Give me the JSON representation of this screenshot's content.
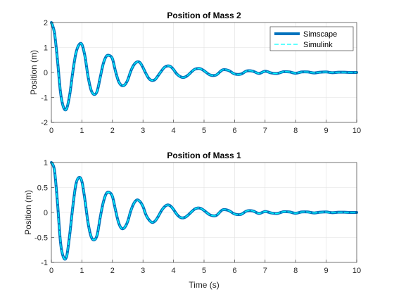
{
  "chart_data": [
    {
      "type": "line",
      "title": "Position of Mass 2",
      "xlabel": "",
      "ylabel": "Position (m)",
      "xlim": [
        0,
        10
      ],
      "ylim": [
        -2,
        2
      ],
      "xticks": [
        0,
        1,
        2,
        3,
        4,
        5,
        6,
        7,
        8,
        9,
        10
      ],
      "yticks": [
        -2,
        -1,
        0,
        1,
        2
      ],
      "grid": true,
      "legend": "top-right",
      "series": [
        {
          "name": "Simscape",
          "style": "solid-thick",
          "color": "#0072BD",
          "x": [
            0,
            0.1,
            0.2,
            0.3,
            0.4,
            0.5,
            0.6,
            0.7,
            0.8,
            0.9,
            1.0,
            1.1,
            1.2,
            1.3,
            1.4,
            1.5,
            1.6,
            1.7,
            1.8,
            1.9,
            2.0,
            2.1,
            2.2,
            2.3,
            2.4,
            2.5,
            2.6,
            2.7,
            2.8,
            2.9,
            3.0,
            3.1,
            3.2,
            3.3,
            3.4,
            3.5,
            3.6,
            3.7,
            3.8,
            3.9,
            4.0,
            4.1,
            4.2,
            4.3,
            4.4,
            4.5,
            4.6,
            4.7,
            4.8,
            4.9,
            5.0,
            5.2,
            5.4,
            5.6,
            5.8,
            6.0,
            6.2,
            6.4,
            6.6,
            6.8,
            7.0,
            7.2,
            7.4,
            7.6,
            7.8,
            8.0,
            8.2,
            8.4,
            8.6,
            8.8,
            9.0,
            9.2,
            9.4,
            9.6,
            9.8,
            10.0
          ],
          "y": [
            2.0,
            1.6,
            0.5,
            -0.8,
            -1.4,
            -1.45,
            -0.9,
            0.0,
            0.75,
            1.1,
            1.12,
            0.65,
            -0.15,
            -0.7,
            -0.88,
            -0.75,
            -0.2,
            0.35,
            0.65,
            0.68,
            0.55,
            0.05,
            -0.35,
            -0.52,
            -0.5,
            -0.3,
            0.05,
            0.3,
            0.42,
            0.4,
            0.2,
            -0.05,
            -0.25,
            -0.32,
            -0.28,
            -0.12,
            0.05,
            0.2,
            0.26,
            0.24,
            0.12,
            -0.05,
            -0.15,
            -0.2,
            -0.17,
            -0.08,
            0.04,
            0.13,
            0.16,
            0.14,
            0.07,
            -0.1,
            -0.1,
            0.1,
            0.08,
            -0.06,
            -0.07,
            0.06,
            0.05,
            -0.04,
            0.05,
            -0.02,
            -0.04,
            0.03,
            0.02,
            -0.03,
            0.02,
            0.02,
            -0.02,
            0.01,
            0.02,
            -0.01,
            0.01,
            0.01,
            0.0,
            0.0
          ]
        },
        {
          "name": "Simulink",
          "style": "dashed",
          "color": "#00FFFF",
          "x": [
            0,
            0.1,
            0.2,
            0.3,
            0.4,
            0.5,
            0.6,
            0.7,
            0.8,
            0.9,
            1.0,
            1.1,
            1.2,
            1.3,
            1.4,
            1.5,
            1.6,
            1.7,
            1.8,
            1.9,
            2.0,
            2.1,
            2.2,
            2.3,
            2.4,
            2.5,
            2.6,
            2.7,
            2.8,
            2.9,
            3.0,
            3.1,
            3.2,
            3.3,
            3.4,
            3.5,
            3.6,
            3.7,
            3.8,
            3.9,
            4.0,
            4.1,
            4.2,
            4.3,
            4.4,
            4.5,
            4.6,
            4.7,
            4.8,
            4.9,
            5.0,
            5.2,
            5.4,
            5.6,
            5.8,
            6.0,
            6.2,
            6.4,
            6.6,
            6.8,
            7.0,
            7.2,
            7.4,
            7.6,
            7.8,
            8.0,
            8.2,
            8.4,
            8.6,
            8.8,
            9.0,
            9.2,
            9.4,
            9.6,
            9.8,
            10.0
          ],
          "y": [
            2.0,
            1.6,
            0.5,
            -0.8,
            -1.4,
            -1.45,
            -0.9,
            0.0,
            0.75,
            1.1,
            1.12,
            0.65,
            -0.15,
            -0.7,
            -0.88,
            -0.75,
            -0.2,
            0.35,
            0.65,
            0.68,
            0.55,
            0.05,
            -0.35,
            -0.52,
            -0.5,
            -0.3,
            0.05,
            0.3,
            0.42,
            0.4,
            0.2,
            -0.05,
            -0.25,
            -0.32,
            -0.28,
            -0.12,
            0.05,
            0.2,
            0.26,
            0.24,
            0.12,
            -0.05,
            -0.15,
            -0.2,
            -0.17,
            -0.08,
            0.04,
            0.13,
            0.16,
            0.14,
            0.07,
            -0.1,
            -0.1,
            0.1,
            0.08,
            -0.06,
            -0.07,
            0.06,
            0.05,
            -0.04,
            0.05,
            -0.02,
            -0.04,
            0.03,
            0.02,
            -0.03,
            0.02,
            0.02,
            -0.02,
            0.01,
            0.02,
            -0.01,
            0.01,
            0.01,
            0.0,
            0.0
          ]
        }
      ]
    },
    {
      "type": "line",
      "title": "Position of Mass 1",
      "xlabel": "Time (s)",
      "ylabel": "Position (m)",
      "xlim": [
        0,
        10
      ],
      "ylim": [
        -1,
        1
      ],
      "xticks": [
        0,
        1,
        2,
        3,
        4,
        5,
        6,
        7,
        8,
        9,
        10
      ],
      "yticks": [
        -1,
        -0.5,
        0,
        0.5,
        1
      ],
      "grid": true,
      "legend": "none",
      "series": [
        {
          "name": "Simscape",
          "style": "solid-thick",
          "color": "#0072BD",
          "x": [
            0,
            0.1,
            0.2,
            0.3,
            0.4,
            0.5,
            0.6,
            0.7,
            0.8,
            0.9,
            1.0,
            1.1,
            1.2,
            1.3,
            1.4,
            1.5,
            1.6,
            1.7,
            1.8,
            1.9,
            2.0,
            2.1,
            2.2,
            2.3,
            2.4,
            2.5,
            2.6,
            2.7,
            2.8,
            2.9,
            3.0,
            3.1,
            3.2,
            3.3,
            3.4,
            3.5,
            3.6,
            3.7,
            3.8,
            3.9,
            4.0,
            4.1,
            4.2,
            4.3,
            4.4,
            4.5,
            4.6,
            4.7,
            4.8,
            4.9,
            5.0,
            5.2,
            5.4,
            5.6,
            5.8,
            6.0,
            6.2,
            6.4,
            6.6,
            6.8,
            7.0,
            7.2,
            7.4,
            7.6,
            7.8,
            8.0,
            8.2,
            8.4,
            8.6,
            8.8,
            9.0,
            9.2,
            9.4,
            9.6,
            9.8,
            10.0
          ],
          "y": [
            1.0,
            0.85,
            0.2,
            -0.6,
            -0.9,
            -0.88,
            -0.45,
            0.1,
            0.55,
            0.7,
            0.62,
            0.25,
            -0.2,
            -0.48,
            -0.55,
            -0.45,
            -0.1,
            0.2,
            0.38,
            0.4,
            0.32,
            0.05,
            -0.2,
            -0.32,
            -0.3,
            -0.18,
            0.03,
            0.18,
            0.25,
            0.22,
            0.12,
            -0.05,
            -0.15,
            -0.2,
            -0.17,
            -0.08,
            0.03,
            0.11,
            0.15,
            0.13,
            0.06,
            -0.03,
            -0.09,
            -0.11,
            -0.09,
            -0.04,
            0.02,
            0.07,
            0.09,
            0.08,
            0.04,
            -0.05,
            -0.06,
            0.05,
            0.04,
            -0.03,
            -0.04,
            0.03,
            0.03,
            -0.02,
            0.02,
            -0.01,
            -0.02,
            0.015,
            0.01,
            -0.015,
            0.01,
            0.01,
            -0.01,
            0.005,
            0.01,
            -0.005,
            0.005,
            0.005,
            0.0,
            0.0
          ]
        },
        {
          "name": "Simulink",
          "style": "dashed",
          "color": "#00FFFF",
          "x": [
            0,
            0.1,
            0.2,
            0.3,
            0.4,
            0.5,
            0.6,
            0.7,
            0.8,
            0.9,
            1.0,
            1.1,
            1.2,
            1.3,
            1.4,
            1.5,
            1.6,
            1.7,
            1.8,
            1.9,
            2.0,
            2.1,
            2.2,
            2.3,
            2.4,
            2.5,
            2.6,
            2.7,
            2.8,
            2.9,
            3.0,
            3.1,
            3.2,
            3.3,
            3.4,
            3.5,
            3.6,
            3.7,
            3.8,
            3.9,
            4.0,
            4.1,
            4.2,
            4.3,
            4.4,
            4.5,
            4.6,
            4.7,
            4.8,
            4.9,
            5.0,
            5.2,
            5.4,
            5.6,
            5.8,
            6.0,
            6.2,
            6.4,
            6.6,
            6.8,
            7.0,
            7.2,
            7.4,
            7.6,
            7.8,
            8.0,
            8.2,
            8.4,
            8.6,
            8.8,
            9.0,
            9.2,
            9.4,
            9.6,
            9.8,
            10.0
          ],
          "y": [
            1.0,
            0.85,
            0.2,
            -0.6,
            -0.9,
            -0.88,
            -0.45,
            0.1,
            0.55,
            0.7,
            0.62,
            0.25,
            -0.2,
            -0.48,
            -0.55,
            -0.45,
            -0.1,
            0.2,
            0.38,
            0.4,
            0.32,
            0.05,
            -0.2,
            -0.32,
            -0.3,
            -0.18,
            0.03,
            0.18,
            0.25,
            0.22,
            0.12,
            -0.05,
            -0.15,
            -0.2,
            -0.17,
            -0.08,
            0.03,
            0.11,
            0.15,
            0.13,
            0.06,
            -0.03,
            -0.09,
            -0.11,
            -0.09,
            -0.04,
            0.02,
            0.07,
            0.09,
            0.08,
            0.04,
            -0.05,
            -0.06,
            0.05,
            0.04,
            -0.03,
            -0.04,
            0.03,
            0.03,
            -0.02,
            0.02,
            -0.01,
            -0.02,
            0.015,
            0.01,
            -0.015,
            0.01,
            0.01,
            -0.01,
            0.005,
            0.01,
            -0.005,
            0.005,
            0.005,
            0.0,
            0.0
          ]
        }
      ]
    }
  ]
}
